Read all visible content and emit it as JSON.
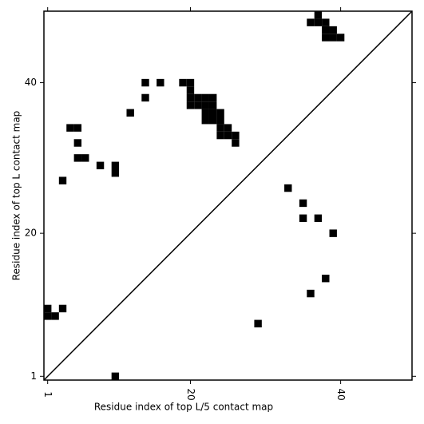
{
  "chart_data": {
    "type": "scatter",
    "marker": "square",
    "xlabel": "Residue index of top L/5 contact map",
    "ylabel": "Residue index of top L contact map",
    "xlim": [
      0.5,
      49.5
    ],
    "ylim": [
      0.5,
      49.5
    ],
    "xticks": [
      1,
      20,
      40
    ],
    "yticks": [
      1,
      20,
      40
    ],
    "diagonal": true,
    "series": [
      {
        "color": "#000000",
        "x": [
          14,
          16,
          19,
          20,
          20,
          14,
          20,
          21,
          22,
          23,
          20,
          21,
          22,
          23,
          12,
          22,
          23,
          24,
          22,
          23,
          24,
          24,
          25,
          4,
          5,
          24,
          25,
          26,
          26,
          5,
          5,
          6,
          8,
          10,
          10,
          3,
          1,
          3,
          1,
          2,
          10,
          37,
          36,
          37,
          38,
          38,
          39,
          38,
          39,
          40,
          33,
          35,
          35,
          37,
          39,
          38,
          36,
          29
        ],
        "values": [
          40,
          40,
          40,
          40,
          39,
          38,
          38,
          38,
          38,
          38,
          37,
          37,
          37,
          37,
          36,
          36,
          36,
          36,
          35,
          35,
          35,
          34,
          34,
          34,
          34,
          33,
          33,
          33,
          32,
          32,
          30,
          30,
          29,
          29,
          28,
          27,
          10,
          10,
          9,
          9,
          1,
          49,
          48,
          48,
          48,
          47,
          47,
          46,
          46,
          46,
          26,
          24,
          22,
          22,
          20,
          14,
          12,
          8
        ]
      }
    ]
  }
}
